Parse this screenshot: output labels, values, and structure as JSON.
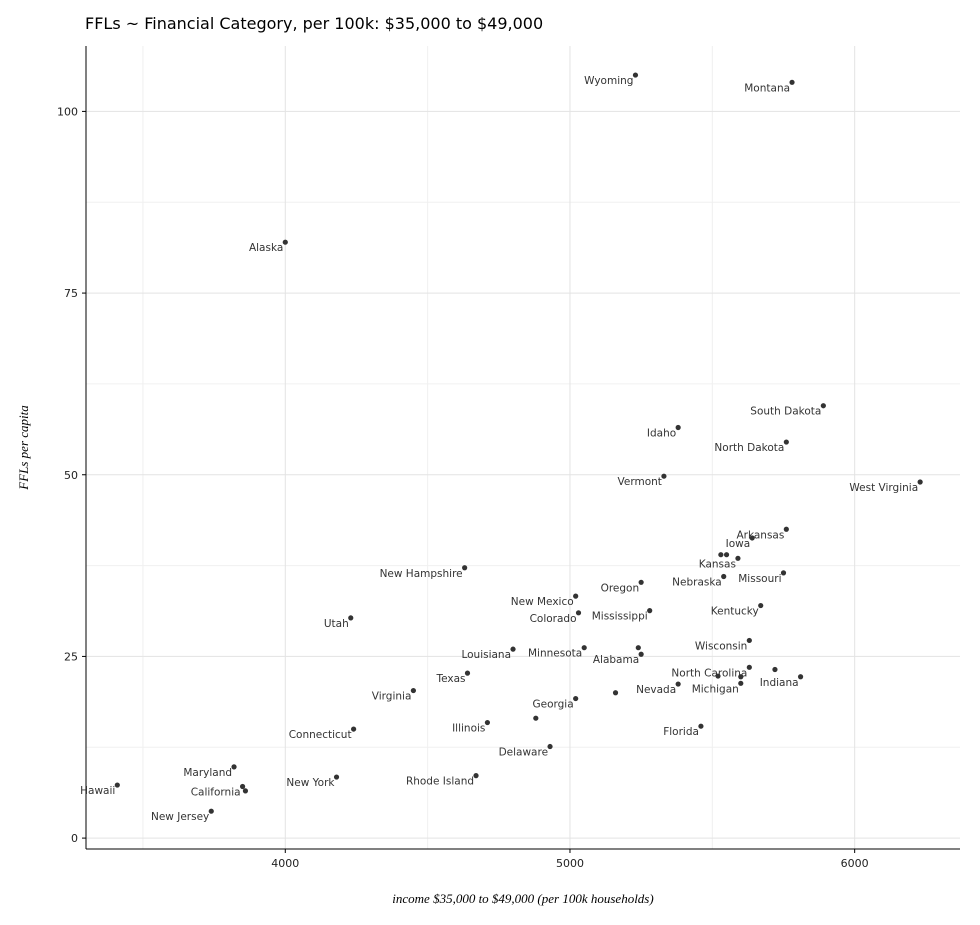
{
  "chart_data": {
    "type": "scatter",
    "title": "FFLs ~ Financial Category, per 100k: $35,000 to $49,000",
    "xlabel": "income $35,000 to $49,000 (per 100k households)",
    "ylabel": "FFLs per capita",
    "xlim": [
      3300,
      6370
    ],
    "ylim": [
      -1.5,
      109
    ],
    "xticks": [
      4000,
      5000,
      6000
    ],
    "yticks": [
      0,
      25,
      50,
      75,
      100
    ],
    "grid": true,
    "points": [
      {
        "label": "Wyoming",
        "x": 5230,
        "y": 105
      },
      {
        "label": "Montana",
        "x": 5780,
        "y": 104
      },
      {
        "label": "Alaska",
        "x": 4000,
        "y": 82
      },
      {
        "label": "South Dakota",
        "x": 5890,
        "y": 59.5
      },
      {
        "label": "Idaho",
        "x": 5380,
        "y": 56.5
      },
      {
        "label": "North Dakota",
        "x": 5760,
        "y": 54.5
      },
      {
        "label": "Vermont",
        "x": 5330,
        "y": 49.8
      },
      {
        "label": "West Virginia",
        "x": 6230,
        "y": 49
      },
      {
        "label": "Arkansas",
        "x": 5760,
        "y": 42.5
      },
      {
        "label": "Iowa",
        "x": 5640,
        "y": 41.3
      },
      {
        "label": "Kansas",
        "x": 5590,
        "y": 38.5
      },
      {
        "label": "New Hampshire",
        "x": 4630,
        "y": 37.2
      },
      {
        "label": "Missouri",
        "x": 5750,
        "y": 36.5
      },
      {
        "label": "Nebraska",
        "x": 5540,
        "y": 36
      },
      {
        "label": "Oregon",
        "x": 5250,
        "y": 35.2
      },
      {
        "label": "New Mexico",
        "x": 5020,
        "y": 33.3
      },
      {
        "label": "Kentucky",
        "x": 5670,
        "y": 32
      },
      {
        "label": "Mississippi",
        "x": 5280,
        "y": 31.3
      },
      {
        "label": "Colorado",
        "x": 5030,
        "y": 31
      },
      {
        "label": "Utah",
        "x": 4230,
        "y": 30.3
      },
      {
        "label": "Wisconsin",
        "x": 5630,
        "y": 27.2
      },
      {
        "label": "Minnesota",
        "x": 5050,
        "y": 26.2
      },
      {
        "label": "Louisiana",
        "x": 4800,
        "y": 26
      },
      {
        "label": "Alabama",
        "x": 5250,
        "y": 25.3
      },
      {
        "label": "North Carolina",
        "x": 5630,
        "y": 23.5
      },
      {
        "label": "Texas",
        "x": 4640,
        "y": 22.7
      },
      {
        "label": "Indiana",
        "x": 5810,
        "y": 22.2
      },
      {
        "label": "Michigan",
        "x": 5600,
        "y": 21.3
      },
      {
        "label": "Nevada",
        "x": 5380,
        "y": 21.2
      },
      {
        "label": "Virginia",
        "x": 4450,
        "y": 20.3
      },
      {
        "label": "Georgia",
        "x": 5020,
        "y": 19.2
      },
      {
        "label": "Illinois",
        "x": 4710,
        "y": 15.9
      },
      {
        "label": "Florida",
        "x": 5460,
        "y": 15.4
      },
      {
        "label": "Connecticut",
        "x": 4240,
        "y": 15
      },
      {
        "label": "Delaware",
        "x": 4930,
        "y": 12.6
      },
      {
        "label": "Maryland",
        "x": 3820,
        "y": 9.8
      },
      {
        "label": "Rhode Island",
        "x": 4670,
        "y": 8.6
      },
      {
        "label": "New York",
        "x": 4180,
        "y": 8.4
      },
      {
        "label": "Hawaii",
        "x": 3410,
        "y": 7.3
      },
      {
        "label": "California",
        "x": 3850,
        "y": 7.1
      },
      {
        "label": "New Jersey",
        "x": 3740,
        "y": 3.7
      },
      {
        "label": "",
        "x": 5160,
        "y": 20
      },
      {
        "label": "",
        "x": 5240,
        "y": 26.2
      },
      {
        "label": "",
        "x": 5530,
        "y": 39
      },
      {
        "label": "",
        "x": 5550,
        "y": 39
      },
      {
        "label": "",
        "x": 5520,
        "y": 22.3
      },
      {
        "label": "",
        "x": 5600,
        "y": 22.2
      },
      {
        "label": "",
        "x": 5720,
        "y": 23.2
      },
      {
        "label": "",
        "x": 4880,
        "y": 16.5
      },
      {
        "label": "",
        "x": 3860,
        "y": 6.5
      }
    ]
  }
}
